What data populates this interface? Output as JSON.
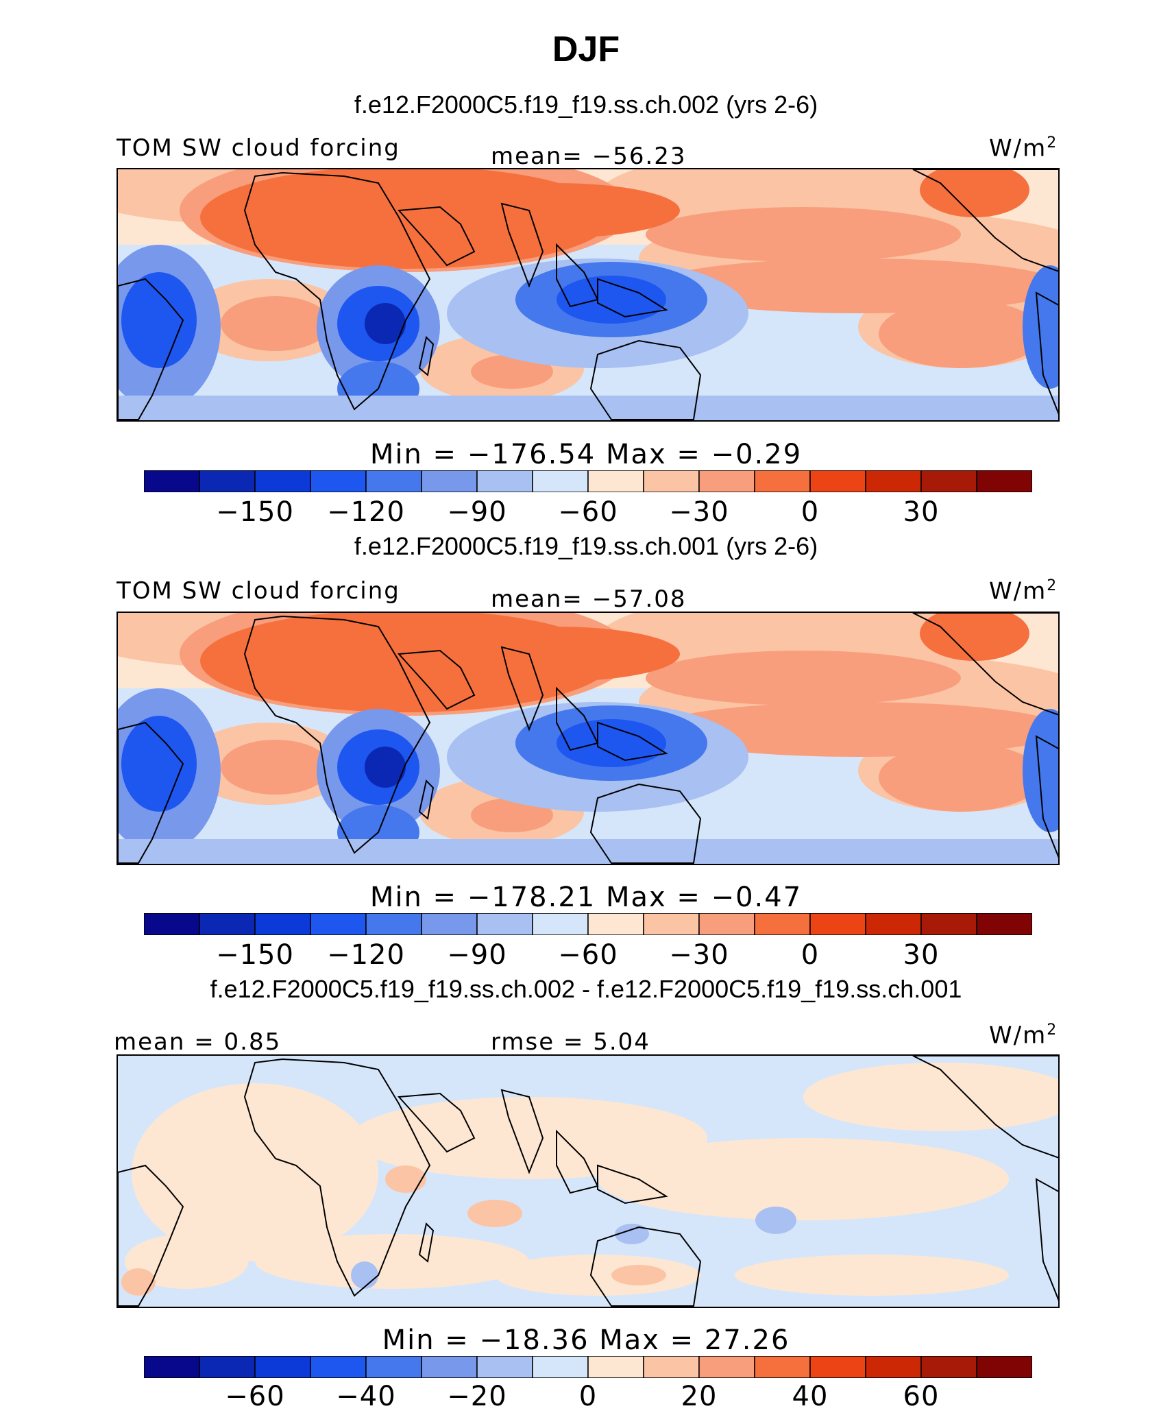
{
  "title": "DJF",
  "units": "W/m",
  "units_sup": "2",
  "colors": [
    "#08088c",
    "#0a28b4",
    "#0c3ad8",
    "#1e56f0",
    "#4478ec",
    "#7898ec",
    "#a8c0f2",
    "#d6e6fa",
    "#fde7d2",
    "#fbc4a4",
    "#f89e7c",
    "#f6703e",
    "#ec4414",
    "#cc2806",
    "#a81a08",
    "#800404"
  ],
  "chart_data": [
    {
      "type": "heatmap",
      "title": "f.e12.F2000C5.f19_f19.ss.ch.002 (yrs 2-6)",
      "left_label": "TOM SW cloud forcing",
      "center_label": "mean= −56.23",
      "stats": "Min = −176.54 Max = −0.29",
      "min": -176.54,
      "max": -0.29,
      "mean": -56.23,
      "colorbar_ticks": [
        "−150",
        "−120",
        "−90",
        "−60",
        "−30",
        "0",
        "30"
      ],
      "colorbar_levels": [
        -180,
        -165,
        -150,
        -135,
        -120,
        -105,
        -90,
        -75,
        -60,
        -45,
        -30,
        -15,
        0,
        15,
        30,
        45,
        60
      ]
    },
    {
      "type": "heatmap",
      "title": "f.e12.F2000C5.f19_f19.ss.ch.001 (yrs 2-6)",
      "left_label": "TOM SW cloud forcing",
      "center_label": "mean= −57.08",
      "stats": "Min = −178.21 Max = −0.47",
      "min": -178.21,
      "max": -0.47,
      "mean": -57.08,
      "colorbar_ticks": [
        "−150",
        "−120",
        "−90",
        "−60",
        "−30",
        "0",
        "30"
      ],
      "colorbar_levels": [
        -180,
        -165,
        -150,
        -135,
        -120,
        -105,
        -90,
        -75,
        -60,
        -45,
        -30,
        -15,
        0,
        15,
        30,
        45,
        60
      ]
    },
    {
      "type": "heatmap",
      "title": "f.e12.F2000C5.f19_f19.ss.ch.002 - f.e12.F2000C5.f19_f19.ss.ch.001",
      "left_label": "mean =   0.85",
      "center_label": "rmse =   5.04",
      "stats": "Min = −18.36 Max =  27.26",
      "min": -18.36,
      "max": 27.26,
      "mean": 0.85,
      "rmse": 5.04,
      "colorbar_ticks": [
        "−60",
        "−40",
        "−20",
        "0",
        "20",
        "40",
        "60"
      ],
      "colorbar_levels": [
        -80,
        -70,
        -60,
        -50,
        -40,
        -30,
        -20,
        -10,
        0,
        10,
        20,
        30,
        40,
        50,
        60,
        70,
        80
      ]
    }
  ]
}
